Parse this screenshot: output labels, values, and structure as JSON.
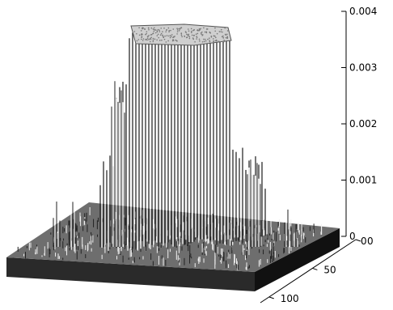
{
  "chart_data": {
    "type": "surface",
    "description_shown": false,
    "z_axis": {
      "ticks": [
        0,
        0.001,
        0.002,
        0.003,
        0.004
      ],
      "tick_labels": [
        "0",
        "0.001",
        "0.002",
        "0.003",
        "0.004"
      ],
      "range": [
        0,
        0.004
      ]
    },
    "x_axis": {
      "ticks": [
        0
      ],
      "tick_labels": [
        "0"
      ]
    },
    "y_axis": {
      "ticks": [
        0,
        50,
        100
      ],
      "tick_labels": [
        "0",
        "50",
        "100"
      ],
      "range": [
        0,
        110
      ]
    },
    "grid": false,
    "features": {
      "plateau_value": 0.004,
      "baseline_value": 0,
      "shape": "central tall peak with flat clipped top on a rough low base"
    }
  }
}
